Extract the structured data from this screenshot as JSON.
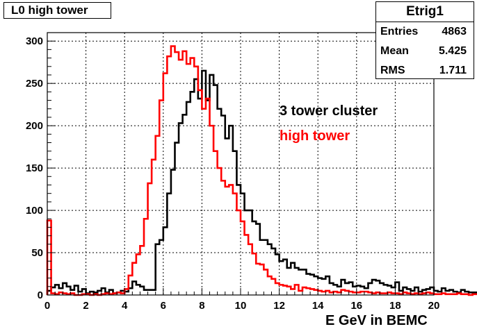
{
  "title": "L0 high tower",
  "stats": {
    "name": "Etrig1",
    "rows": [
      {
        "label": "Entries",
        "value": "4863"
      },
      {
        "label": "Mean",
        "value": "5.425"
      },
      {
        "label": "RMS",
        "value": "1.711"
      }
    ]
  },
  "annotations": {
    "cluster": "3 tower cluster",
    "high": "high tower"
  },
  "colors": {
    "cluster": "#000000",
    "high": "#ff0000"
  },
  "chart_data": {
    "type": "line",
    "title": "L0 high tower",
    "xlabel": "E GeV in BEMC",
    "ylabel": "",
    "xlim": [
      0,
      20
    ],
    "ylim": [
      0,
      310
    ],
    "xticks": [
      0,
      2,
      4,
      6,
      8,
      10,
      12,
      14,
      16,
      18,
      20
    ],
    "yticks": [
      0,
      50,
      100,
      150,
      200,
      250,
      300
    ],
    "grid": true,
    "bin_width": 0.2,
    "series": [
      {
        "name": "3 tower cluster",
        "color": "#000000",
        "values": [
          5,
          9,
          12,
          8,
          14,
          10,
          6,
          11,
          4,
          7,
          2,
          4,
          3,
          5,
          8,
          3,
          6,
          2,
          3,
          5,
          4,
          8,
          16,
          12,
          10,
          6,
          6,
          6,
          60,
          65,
          80,
          120,
          148,
          180,
          203,
          213,
          228,
          240,
          255,
          232,
          265,
          230,
          260,
          248,
          220,
          212,
          185,
          200,
          170,
          130,
          120,
          100,
          100,
          87,
          84,
          65,
          65,
          60,
          55,
          48,
          40,
          42,
          32,
          38,
          32,
          30,
          30,
          25,
          24,
          22,
          20,
          19,
          22,
          14,
          12,
          10,
          18,
          14,
          15,
          10,
          11,
          10,
          8,
          14,
          18,
          17,
          14,
          12,
          11,
          9,
          15,
          5,
          9,
          7,
          5,
          9,
          4,
          6,
          7,
          9,
          5,
          4,
          8,
          5,
          6,
          4,
          3,
          6,
          4,
          3,
          3,
          2,
          4,
          3,
          2,
          3,
          1,
          2,
          2,
          3,
          2,
          1,
          2,
          3,
          1,
          2,
          1,
          4,
          2,
          1,
          2,
          1,
          2,
          1,
          3,
          2,
          1,
          1,
          2,
          1,
          1,
          2,
          3,
          3,
          1,
          2,
          2,
          1,
          1,
          2
        ]
      },
      {
        "name": "high tower",
        "color": "#ff0000",
        "values": [
          88,
          2,
          1,
          3,
          2,
          1,
          2,
          0,
          0,
          1,
          1,
          0,
          1,
          0,
          1,
          2,
          1,
          2,
          3,
          2,
          7,
          23,
          38,
          48,
          58,
          90,
          132,
          160,
          188,
          230,
          262,
          282,
          294,
          287,
          278,
          288,
          273,
          280,
          270,
          242,
          220,
          232,
          200,
          170,
          150,
          135,
          128,
          130,
          120,
          100,
          87,
          71,
          60,
          49,
          37,
          36,
          30,
          22,
          19,
          14,
          12,
          11,
          10,
          7,
          12,
          5,
          9,
          8,
          7,
          6,
          5,
          4,
          5,
          3,
          4,
          3,
          6,
          5,
          4,
          3,
          3,
          4,
          4,
          3,
          2,
          3,
          2,
          2,
          3,
          2,
          2,
          1,
          3,
          2,
          1,
          2,
          1,
          2,
          3,
          2,
          1,
          1,
          2,
          1,
          1,
          1,
          2,
          1,
          1,
          0,
          1,
          1,
          0,
          1,
          1,
          0,
          1,
          0,
          1,
          1,
          0,
          1,
          0,
          1,
          0,
          1,
          0,
          0,
          1,
          0,
          1,
          0,
          0,
          1,
          0,
          0,
          1,
          0,
          0,
          1,
          0,
          0,
          1,
          0,
          0,
          1,
          0,
          0,
          1,
          0
        ]
      }
    ]
  }
}
